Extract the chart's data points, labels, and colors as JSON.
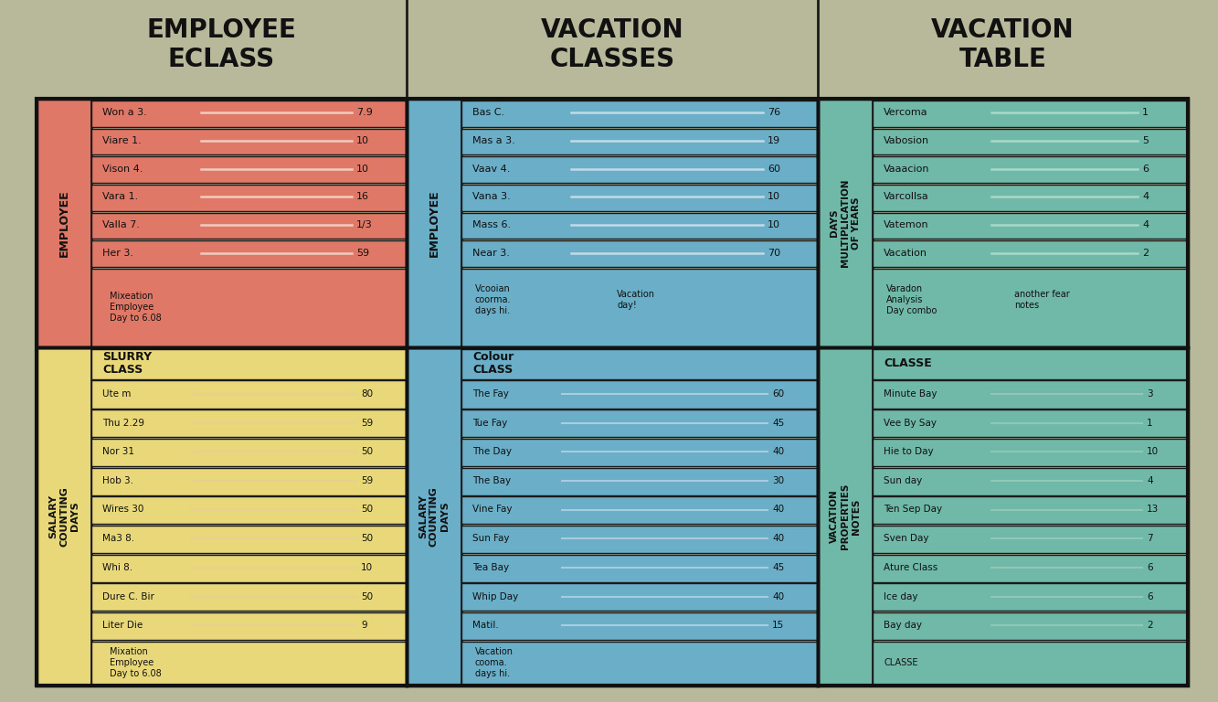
{
  "background_color": "#b8b89a",
  "title_col1": "EMPLOYEE\nECLASS",
  "title_col2": "VACATION\nCLASSES",
  "title_col3": "VACATION\nTABLE",
  "col1_bg": "#e07868",
  "col1_side_label": "EMPLOYEE",
  "col1_rows": [
    {
      "label": "Her 3.",
      "value": "59"
    },
    {
      "label": "Valla 7.",
      "value": "1/3"
    },
    {
      "label": "Vara 1.",
      "value": "16"
    },
    {
      "label": "Vison 4.",
      "value": "10"
    },
    {
      "label": "Viare 1.",
      "value": "10"
    },
    {
      "label": "Won a 3.",
      "value": "7.9"
    }
  ],
  "col1_footer": "Mixeation\nEmployee\nDay to 6.08",
  "col2_bg": "#6aaec8",
  "col2_side_label": "EMPLOYEE",
  "col2_rows": [
    {
      "label": "Near 3.",
      "value": "70"
    },
    {
      "label": "Mass 6.",
      "value": "10"
    },
    {
      "label": "Vana 3.",
      "value": "10"
    },
    {
      "label": "Vaav 4.",
      "value": "60"
    },
    {
      "label": "Mas a 3.",
      "value": "19"
    },
    {
      "label": "Bas C.",
      "value": "76"
    }
  ],
  "col2_footer_left": "Vcooian\ncoorma.\ndays hi.",
  "col2_footer_right": "Vacation\nday!",
  "col3_bg": "#70b8a8",
  "col3_side_label": "DAYS\nMULTIPLICATION\nOF YEARS",
  "col3_rows": [
    {
      "label": "Vacation",
      "value": "2"
    },
    {
      "label": "Vatemon",
      "value": "4"
    },
    {
      "label": "Varcollsa",
      "value": "4"
    },
    {
      "label": "Vaaacion",
      "value": "6"
    },
    {
      "label": "Vabosion",
      "value": "5"
    },
    {
      "label": "Vercoma",
      "value": "1"
    }
  ],
  "col3_footer_left": "Varadon\nAnalysis\nDay combo",
  "col3_footer_right": "another fear\nnotes",
  "bot_col1_bg": "#e8d87a",
  "bot_col1_side_label": "SALARY\nCOUNTING\nDAYS",
  "bot_col1_header": "SLURRY\nCLASS",
  "bot_col1_rows": [
    {
      "label": "Liter Die",
      "value": "9"
    },
    {
      "label": "Dure C. Bir",
      "value": "50"
    },
    {
      "label": "Whi 8.",
      "value": "10"
    },
    {
      "label": "Ma3 8.",
      "value": "50"
    },
    {
      "label": "Wires 30",
      "value": "50"
    },
    {
      "label": "Hob 3.",
      "value": "59"
    },
    {
      "label": "Nor 31",
      "value": "50"
    },
    {
      "label": "Thu 2.29",
      "value": "59"
    },
    {
      "label": "Ute m",
      "value": "80"
    }
  ],
  "bot_col1_footer": "Mixation\nEmployee\nDay to 6.08",
  "bot_col2_bg": "#6aaec8",
  "bot_col2_side_label": "SALARY\nCOUNTING\nDAYS",
  "bot_col2_header": "Colour\nCLASS",
  "bot_col2_rows": [
    {
      "label": "Matil.",
      "value": "15"
    },
    {
      "label": "Whip Day",
      "value": "40"
    },
    {
      "label": "Tea Bay",
      "value": "45"
    },
    {
      "label": "Sun Fay",
      "value": "40"
    },
    {
      "label": "Vine Fay",
      "value": "40"
    },
    {
      "label": "The Bay",
      "value": "30"
    },
    {
      "label": "The Day",
      "value": "40"
    },
    {
      "label": "Tue Fay",
      "value": "45"
    },
    {
      "label": "The Fay",
      "value": "60"
    }
  ],
  "bot_col2_footer": "Vacation\ncooma.\ndays hi.",
  "bot_col3_bg": "#70b8a8",
  "bot_col3_side_label": "VACATION\nPROPERTIES\nNOTES",
  "bot_col3_header": "CLASSE",
  "bot_col3_rows": [
    {
      "label": "Bay day",
      "value": "2"
    },
    {
      "label": "Ice day",
      "value": "6"
    },
    {
      "label": "Ature Class",
      "value": "6"
    },
    {
      "label": "Sven Day",
      "value": "7"
    },
    {
      "label": "Ten Sep Day",
      "value": "13"
    },
    {
      "label": "Sun day",
      "value": "4"
    },
    {
      "label": "Hie to Day",
      "value": "10"
    },
    {
      "label": "Vee By Say",
      "value": "1"
    },
    {
      "label": "Minute Bay",
      "value": "3"
    }
  ],
  "bot_col3_footer": "CLASSE"
}
